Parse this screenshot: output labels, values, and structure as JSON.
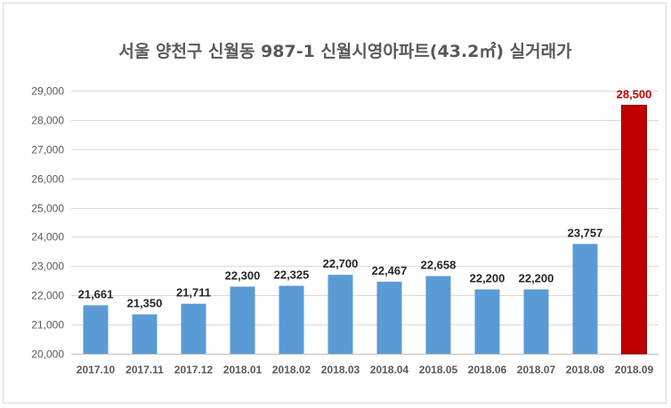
{
  "chart_data": {
    "type": "bar",
    "title": "서울 양천구 신월동 987-1 신월시영아파트(43.2㎡) 실거래가",
    "categories": [
      "2017.10",
      "2017.11",
      "2017.12",
      "2018.01",
      "2018.02",
      "2018.03",
      "2018.04",
      "2018.05",
      "2018.06",
      "2018.07",
      "2018.08",
      "2018.09"
    ],
    "values": [
      21661,
      21350,
      21711,
      22300,
      22325,
      22700,
      22467,
      22658,
      22200,
      22200,
      23757,
      28500
    ],
    "data_labels": [
      "21,661",
      "21,350",
      "21,711",
      "22,300",
      "22,325",
      "22,700",
      "22,467",
      "22,658",
      "22,200",
      "22,200",
      "23,757",
      "28,500"
    ],
    "ylim": [
      20000,
      29000
    ],
    "y_ticks": [
      20000,
      21000,
      22000,
      23000,
      24000,
      25000,
      26000,
      27000,
      28000,
      29000
    ],
    "y_tick_labels": [
      "20,000",
      "21,000",
      "22,000",
      "23,000",
      "24,000",
      "25,000",
      "26,000",
      "27,000",
      "28,000",
      "29,000"
    ],
    "highlight_index": 11,
    "grid": true,
    "legend": "none",
    "colors": {
      "bar": "#5b9bd5",
      "bar_highlight": "#c00000",
      "bar_highlight_border": "#8b0000",
      "label_highlight": "#c00000"
    }
  }
}
